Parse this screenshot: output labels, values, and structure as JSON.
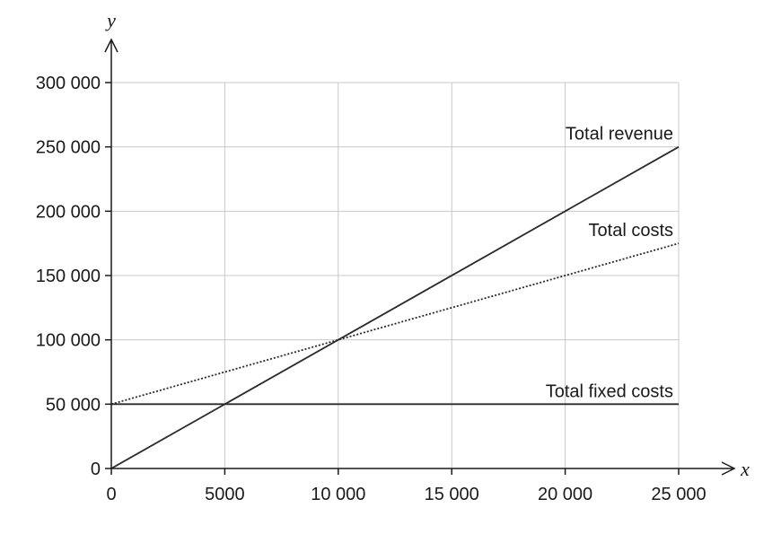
{
  "chart_data": {
    "type": "line",
    "xlabel": "x",
    "ylabel": "y",
    "xlim": [
      0,
      25000
    ],
    "ylim": [
      0,
      300000
    ],
    "x_ticks": [
      0,
      5000,
      10000,
      15000,
      20000,
      25000
    ],
    "x_tick_labels": [
      "0",
      "5000",
      "10 000",
      "15 000",
      "20 000",
      "25 000"
    ],
    "y_ticks": [
      0,
      50000,
      100000,
      150000,
      200000,
      250000,
      300000
    ],
    "y_tick_labels": [
      "0",
      "50 000",
      "100 000",
      "150 000",
      "200 000",
      "250 000",
      "300 000"
    ],
    "grid": true,
    "series": [
      {
        "name": "Total revenue",
        "style": "solid",
        "x": [
          0,
          25000
        ],
        "y": [
          0,
          250000
        ]
      },
      {
        "name": "Total costs",
        "style": "dotted",
        "x": [
          0,
          25000
        ],
        "y": [
          50000,
          175000
        ]
      },
      {
        "name": "Total fixed costs",
        "style": "solid",
        "x": [
          0,
          25000
        ],
        "y": [
          50000,
          50000
        ]
      }
    ]
  }
}
